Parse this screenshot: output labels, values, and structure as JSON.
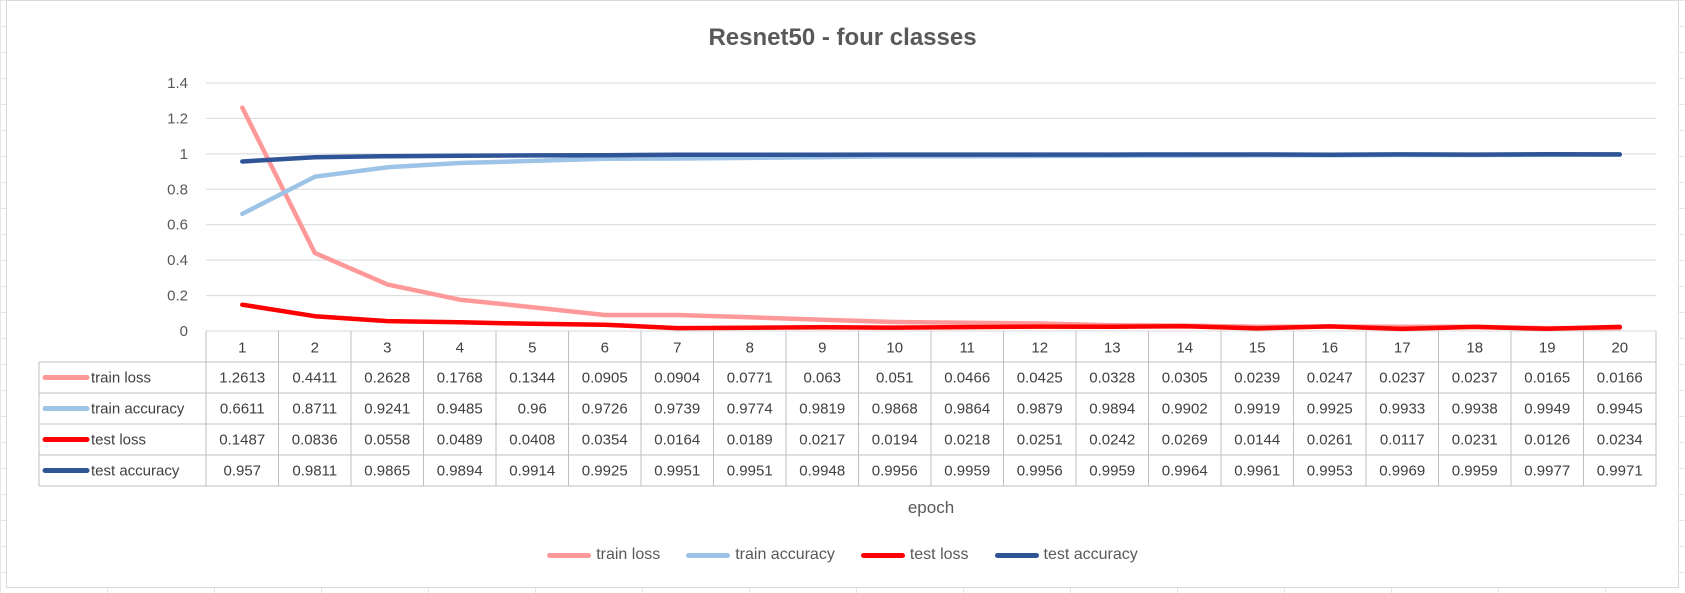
{
  "chart_data": {
    "type": "line",
    "title": "Resnet50 - four classes",
    "xlabel": "epoch",
    "ylabel": "",
    "ylim": [
      0,
      1.4
    ],
    "yticks": [
      "0",
      "0.2",
      "0.4",
      "0.6",
      "0.8",
      "1",
      "1.2",
      "1.4"
    ],
    "grid": true,
    "legend_position": "bottom",
    "data_table": true,
    "categories": [
      "1",
      "2",
      "3",
      "4",
      "5",
      "6",
      "7",
      "8",
      "9",
      "10",
      "11",
      "12",
      "13",
      "14",
      "15",
      "16",
      "17",
      "18",
      "19",
      "20"
    ],
    "series": [
      {
        "name": "train loss",
        "color": "#ff9999",
        "values": [
          1.2613,
          0.4411,
          0.2628,
          0.1768,
          0.1344,
          0.0905,
          0.0904,
          0.0771,
          0.063,
          0.051,
          0.0466,
          0.0425,
          0.0328,
          0.0305,
          0.0239,
          0.0247,
          0.0237,
          0.0237,
          0.0165,
          0.0166
        ]
      },
      {
        "name": "train accuracy",
        "color": "#9dc3e6",
        "values": [
          0.6611,
          0.8711,
          0.9241,
          0.9485,
          0.96,
          0.9726,
          0.9739,
          0.9774,
          0.9819,
          0.9868,
          0.9864,
          0.9879,
          0.9894,
          0.9902,
          0.9919,
          0.9925,
          0.9933,
          0.9938,
          0.9949,
          0.9945
        ]
      },
      {
        "name": "test loss",
        "color": "#ff0000",
        "values": [
          0.1487,
          0.0836,
          0.0558,
          0.0489,
          0.0408,
          0.0354,
          0.0164,
          0.0189,
          0.0217,
          0.0194,
          0.0218,
          0.0251,
          0.0242,
          0.0269,
          0.0144,
          0.0261,
          0.0117,
          0.0231,
          0.0126,
          0.0234
        ]
      },
      {
        "name": "test accuracy",
        "color": "#2f5597",
        "values": [
          0.957,
          0.9811,
          0.9865,
          0.9894,
          0.9914,
          0.9925,
          0.9951,
          0.9951,
          0.9948,
          0.9956,
          0.9959,
          0.9956,
          0.9959,
          0.9964,
          0.9961,
          0.9953,
          0.9969,
          0.9959,
          0.9977,
          0.9971
        ]
      }
    ]
  }
}
